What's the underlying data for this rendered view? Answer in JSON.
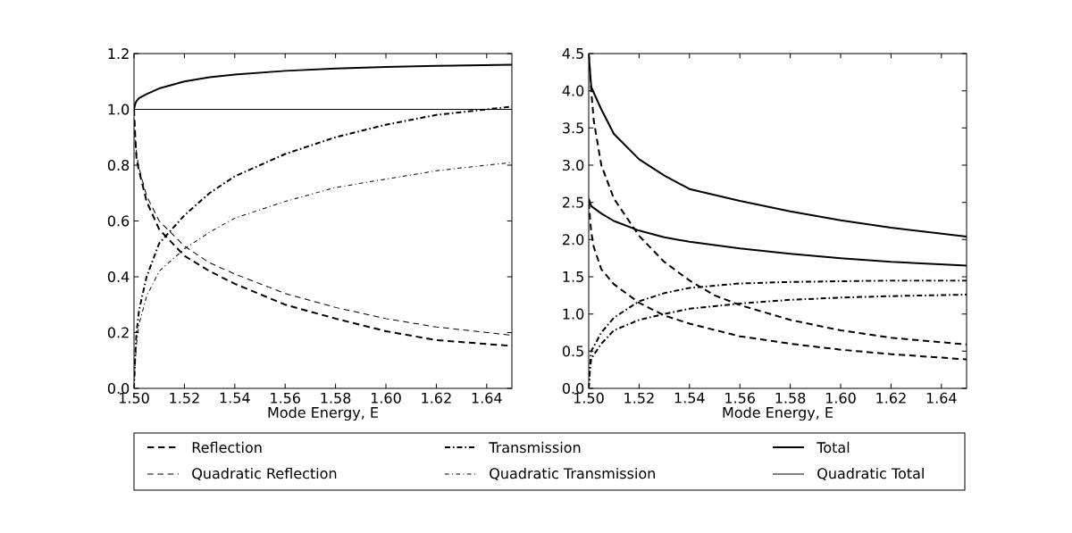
{
  "chart_data": [
    {
      "type": "line",
      "xlabel": "Mode Energy, E",
      "legend": "bottom",
      "xlim": [
        1.5,
        1.65
      ],
      "xticks": [
        {
          "value": 1.5,
          "label": "1.50"
        },
        {
          "value": 1.52,
          "label": "1.52"
        },
        {
          "value": 1.54,
          "label": "1.54"
        },
        {
          "value": 1.56,
          "label": "1.56"
        },
        {
          "value": 1.58,
          "label": "1.58"
        },
        {
          "value": 1.6,
          "label": "1.60"
        },
        {
          "value": 1.62,
          "label": "1.62"
        },
        {
          "value": 1.64,
          "label": "1.64"
        }
      ],
      "ylim": [
        0,
        1.2
      ],
      "yticks": [
        {
          "value": 0,
          "label": "0.0"
        },
        {
          "value": 0.2,
          "label": "0.2"
        },
        {
          "value": 0.4,
          "label": "0.4"
        },
        {
          "value": 0.6,
          "label": "0.6"
        },
        {
          "value": 0.8,
          "label": "0.8"
        },
        {
          "value": 1.0,
          "label": "1.0"
        },
        {
          "value": 1.2,
          "label": "1.2"
        }
      ],
      "series": [
        {
          "name": "Reflection",
          "color": "#000000",
          "line_style": "dashed",
          "x": [
            1.5,
            1.5005,
            1.501,
            1.502,
            1.505,
            1.51,
            1.52,
            1.53,
            1.54,
            1.56,
            1.58,
            1.6,
            1.62,
            1.65
          ],
          "values": [
            1.0,
            0.9,
            0.82,
            0.78,
            0.67,
            0.57,
            0.475,
            0.42,
            0.375,
            0.3,
            0.25,
            0.205,
            0.173,
            0.152
          ]
        },
        {
          "name": "Quadratic Reflection",
          "color": "#000000",
          "line_style": "dashed",
          "x": [
            1.5,
            1.5005,
            1.501,
            1.502,
            1.505,
            1.51,
            1.52,
            1.53,
            1.54,
            1.56,
            1.58,
            1.6,
            1.62,
            1.65
          ],
          "values": [
            1.0,
            0.9,
            0.84,
            0.79,
            0.69,
            0.6,
            0.51,
            0.45,
            0.41,
            0.34,
            0.29,
            0.25,
            0.22,
            0.19
          ]
        },
        {
          "name": "Transmission",
          "color": "#000000",
          "line_style": "dashdot",
          "x": [
            1.5,
            1.5005,
            1.501,
            1.502,
            1.505,
            1.51,
            1.52,
            1.53,
            1.54,
            1.56,
            1.58,
            1.6,
            1.62,
            1.65
          ],
          "values": [
            0.0,
            0.12,
            0.2,
            0.28,
            0.4,
            0.52,
            0.62,
            0.7,
            0.76,
            0.84,
            0.9,
            0.945,
            0.98,
            1.01
          ]
        },
        {
          "name": "Quadratic Transmission",
          "color": "#000000",
          "line_style": "dashdot",
          "x": [
            1.5,
            1.5005,
            1.501,
            1.502,
            1.505,
            1.51,
            1.52,
            1.53,
            1.54,
            1.56,
            1.58,
            1.6,
            1.62,
            1.65
          ],
          "values": [
            0.0,
            0.1,
            0.16,
            0.23,
            0.33,
            0.42,
            0.5,
            0.56,
            0.61,
            0.67,
            0.72,
            0.75,
            0.78,
            0.81
          ]
        },
        {
          "name": "Total",
          "color": "#000000",
          "line_style": "solid",
          "x": [
            1.5,
            1.5005,
            1.501,
            1.502,
            1.505,
            1.51,
            1.52,
            1.53,
            1.54,
            1.56,
            1.58,
            1.6,
            1.62,
            1.65
          ],
          "values": [
            1.0,
            1.02,
            1.03,
            1.04,
            1.055,
            1.075,
            1.1,
            1.115,
            1.125,
            1.138,
            1.146,
            1.152,
            1.156,
            1.16
          ]
        },
        {
          "name": "Quadratic Total",
          "color": "#000000",
          "line_style": "solid",
          "x": [
            1.5,
            1.65
          ],
          "values": [
            1.0,
            1.0
          ]
        }
      ]
    },
    {
      "type": "line",
      "xlabel": "Mode Energy, E",
      "xlim": [
        1.5,
        1.65
      ],
      "xticks": [
        {
          "value": 1.5,
          "label": "1.50"
        },
        {
          "value": 1.52,
          "label": "1.52"
        },
        {
          "value": 1.54,
          "label": "1.54"
        },
        {
          "value": 1.56,
          "label": "1.56"
        },
        {
          "value": 1.58,
          "label": "1.58"
        },
        {
          "value": 1.6,
          "label": "1.60"
        },
        {
          "value": 1.62,
          "label": "1.62"
        },
        {
          "value": 1.64,
          "label": "1.64"
        }
      ],
      "ylim": [
        0,
        4.5
      ],
      "yticks": [
        {
          "value": 0,
          "label": "0.0"
        },
        {
          "value": 0.5,
          "label": "0.5"
        },
        {
          "value": 1.0,
          "label": "1.0"
        },
        {
          "value": 1.5,
          "label": "1.5"
        },
        {
          "value": 2.0,
          "label": "2.0"
        },
        {
          "value": 2.5,
          "label": "2.5"
        },
        {
          "value": 3.0,
          "label": "3.0"
        },
        {
          "value": 3.5,
          "label": "3.5"
        },
        {
          "value": 4.0,
          "label": "4.0"
        },
        {
          "value": 4.5,
          "label": "4.5"
        }
      ],
      "series": [
        {
          "color": "#000000",
          "line_style": "dashed",
          "x": [
            1.5,
            1.501,
            1.502,
            1.505,
            1.51,
            1.52,
            1.53,
            1.54,
            1.55,
            1.56,
            1.58,
            1.6,
            1.62,
            1.65
          ],
          "values": [
            4.5,
            4.0,
            3.6,
            3.0,
            2.55,
            2.05,
            1.7,
            1.45,
            1.25,
            1.12,
            0.92,
            0.78,
            0.68,
            0.59
          ]
        },
        {
          "color": "#000000",
          "line_style": "dashed",
          "x": [
            1.5,
            1.501,
            1.502,
            1.505,
            1.51,
            1.52,
            1.53,
            1.54,
            1.56,
            1.58,
            1.6,
            1.62,
            1.65
          ],
          "values": [
            2.5,
            2.1,
            1.9,
            1.6,
            1.4,
            1.15,
            0.98,
            0.87,
            0.7,
            0.6,
            0.52,
            0.46,
            0.39
          ]
        },
        {
          "color": "#000000",
          "line_style": "dashdot",
          "x": [
            1.5,
            1.5005,
            1.501,
            1.505,
            1.51,
            1.52,
            1.53,
            1.54,
            1.56,
            1.58,
            1.6,
            1.62,
            1.65
          ],
          "values": [
            0.0,
            0.3,
            0.5,
            0.75,
            0.95,
            1.17,
            1.28,
            1.35,
            1.41,
            1.43,
            1.44,
            1.45,
            1.45
          ]
        },
        {
          "color": "#000000",
          "line_style": "dashdot",
          "x": [
            1.5,
            1.5005,
            1.501,
            1.505,
            1.51,
            1.52,
            1.53,
            1.54,
            1.56,
            1.58,
            1.6,
            1.62,
            1.65
          ],
          "values": [
            0.0,
            0.25,
            0.4,
            0.6,
            0.78,
            0.92,
            1.0,
            1.07,
            1.14,
            1.19,
            1.22,
            1.24,
            1.26
          ]
        },
        {
          "color": "#000000",
          "line_style": "solid",
          "x": [
            1.5,
            1.501,
            1.505,
            1.51,
            1.52,
            1.53,
            1.54,
            1.56,
            1.58,
            1.6,
            1.62,
            1.65
          ],
          "values": [
            4.5,
            4.05,
            3.75,
            3.42,
            3.08,
            2.86,
            2.68,
            2.52,
            2.38,
            2.26,
            2.16,
            2.04
          ]
        },
        {
          "color": "#000000",
          "line_style": "solid",
          "x": [
            1.5,
            1.501,
            1.505,
            1.51,
            1.52,
            1.53,
            1.54,
            1.56,
            1.58,
            1.6,
            1.62,
            1.65
          ],
          "values": [
            2.55,
            2.45,
            2.35,
            2.25,
            2.12,
            2.03,
            1.97,
            1.88,
            1.81,
            1.75,
            1.7,
            1.65
          ]
        }
      ]
    }
  ]
}
